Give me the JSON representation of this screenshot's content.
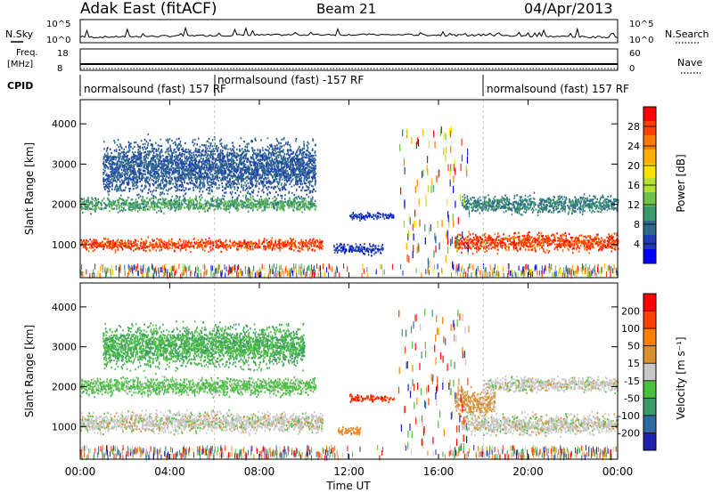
{
  "header": {
    "station": "Adak East (fitACF)",
    "beam": "Beam 21",
    "date": "04/Apr/2013"
  },
  "noise_panel": {
    "left_label": "N.Sky",
    "right_label": "N.Search",
    "left_ticks": [
      "10^5",
      "10^0"
    ],
    "right_ticks": [
      "10^5",
      "10^0"
    ]
  },
  "freq_panel": {
    "left_label_1": "Freq.",
    "left_label_2": "[MHz]",
    "right_label": "Nave",
    "left_ticks": [
      "18",
      "8"
    ],
    "right_ticks": [
      "60",
      "0"
    ]
  },
  "cpid_panel": {
    "label": "CPID",
    "segments": [
      {
        "text": "normalsound (fast) 157 RF",
        "start_hour": 0
      },
      {
        "text": "normalsound (fast) -157 RF",
        "start_hour": 6
      },
      {
        "text": "normalsound (fast) 157 RF",
        "start_hour": 18
      }
    ]
  },
  "x_axis": {
    "ticks": [
      "00:00",
      "04:00",
      "08:00",
      "12:00",
      "16:00",
      "20:00",
      "00:00"
    ],
    "title": "Time UT"
  },
  "power_panel": {
    "ylabel": "Slant Range [km]",
    "yticks": [
      "4000",
      "3000",
      "2000",
      "1000"
    ],
    "colorbar_label": "Power [dB]",
    "colorbar_ticks": [
      "28",
      "24",
      "20",
      "16",
      "12",
      "8",
      "4"
    ],
    "colors": [
      "#0000ff",
      "#1e3cb4",
      "#2f6a8a",
      "#3c9a6a",
      "#6cc24a",
      "#b4e032",
      "#ffe000",
      "#ffb000",
      "#ff7a00",
      "#ff4000",
      "#ff0000"
    ]
  },
  "velocity_panel": {
    "ylabel": "Slant Range [km]",
    "yticks": [
      "4000",
      "3000",
      "2000",
      "1000"
    ],
    "colorbar_label": "Velocity [m s⁻¹]",
    "colorbar_ticks": [
      "200",
      "100",
      "50",
      "15",
      "-15",
      "-50",
      "-100",
      "-200"
    ],
    "colors": [
      "#2020b0",
      "#2f6aa0",
      "#3c9a6a",
      "#4cc040",
      "#c8c8c8",
      "#d89030",
      "#ff8000",
      "#ff4000",
      "#ff0000"
    ]
  },
  "chart_data": {
    "type": "heatmap",
    "x": {
      "label": "Time UT",
      "range_hours": [
        0,
        24
      ]
    },
    "y": {
      "label": "Slant Range [km]",
      "range_km": [
        180,
        4600
      ]
    },
    "panels": [
      {
        "name": "Power [dB]",
        "color_range": [
          0,
          30
        ],
        "regions": [
          {
            "t0": 0.0,
            "t1": 10.8,
            "r_center": 1000,
            "r_width": 200,
            "value": 26
          },
          {
            "t0": 0.0,
            "t1": 10.5,
            "r_center": 2000,
            "r_width": 250,
            "value": 10
          },
          {
            "t0": 1.0,
            "t1": 10.5,
            "r_center": 2900,
            "r_width": 900,
            "value": 6
          },
          {
            "t0": 12.0,
            "t1": 14.0,
            "r_center": 1700,
            "r_width": 120,
            "value": 4
          },
          {
            "t0": 11.3,
            "t1": 13.5,
            "r_center": 880,
            "r_width": 180,
            "value": 4
          },
          {
            "t0": 16.7,
            "t1": 24.0,
            "r_center": 1050,
            "r_width": 300,
            "value": 26
          },
          {
            "t0": 17.0,
            "t1": 24.0,
            "r_center": 2000,
            "r_width": 300,
            "value": 8
          }
        ]
      },
      {
        "name": "Velocity [m s-1]",
        "color_range": [
          -200,
          200
        ],
        "regions": [
          {
            "t0": 0.0,
            "t1": 10.8,
            "r_center": 1100,
            "r_width": 350,
            "value": 0
          },
          {
            "t0": 0.0,
            "t1": 10.5,
            "r_center": 2000,
            "r_width": 300,
            "value": -40
          },
          {
            "t0": 1.0,
            "t1": 10.0,
            "r_center": 3000,
            "r_width": 700,
            "value": -60
          },
          {
            "t0": 12.0,
            "t1": 14.0,
            "r_center": 1700,
            "r_width": 120,
            "value": 150
          },
          {
            "t0": 11.5,
            "t1": 12.5,
            "r_center": 880,
            "r_width": 150,
            "value": 60
          },
          {
            "t0": 16.7,
            "t1": 18.5,
            "r_center": 1600,
            "r_width": 450,
            "value": 40
          },
          {
            "t0": 17.0,
            "t1": 24.0,
            "r_center": 1050,
            "r_width": 350,
            "value": 0
          },
          {
            "t0": 18.0,
            "t1": 24.0,
            "r_center": 2050,
            "r_width": 250,
            "value": 0
          }
        ]
      }
    ]
  }
}
